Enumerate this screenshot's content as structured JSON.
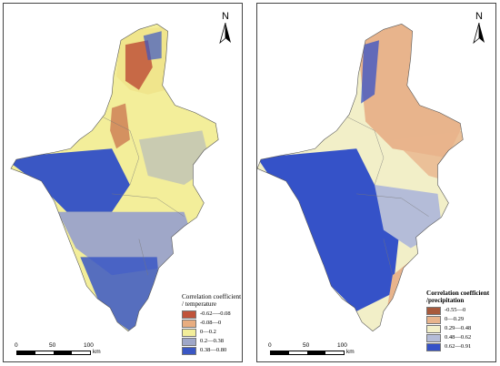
{
  "panels": [
    {
      "id": "temperature",
      "north_label": "N",
      "legend": {
        "title_line1": "Correlation coefficient",
        "title_line2": "/ temperature",
        "classes": [
          {
            "label": "-0.62—-0.08",
            "color": "#c0533a"
          },
          {
            "label": "-0.08—0",
            "color": "#e8ad80"
          },
          {
            "label": "0—0.2",
            "color": "#f3ee9a"
          },
          {
            "label": "0.2—0.38",
            "color": "#9fa7c8"
          },
          {
            "label": "0.38—0.80",
            "color": "#3a57c4"
          }
        ]
      },
      "scale": {
        "ticks": [
          "0",
          "50",
          "100"
        ],
        "unit": "km"
      }
    },
    {
      "id": "precipitation",
      "north_label": "N",
      "legend": {
        "title_line1": "Correlation coefficient",
        "title_line2": "/precipitation",
        "classes": [
          {
            "label": "-0.55—0",
            "color": "#a85a3c"
          },
          {
            "label": "0—0.29",
            "color": "#e8b48c"
          },
          {
            "label": "0.29—0.48",
            "color": "#f2efc8"
          },
          {
            "label": "0.48—0.62",
            "color": "#b4bcd8"
          },
          {
            "label": "0.62—0.91",
            "color": "#3552c8"
          }
        ]
      },
      "scale": {
        "ticks": [
          "0",
          "50",
          "100"
        ],
        "unit": "km"
      }
    }
  ]
}
